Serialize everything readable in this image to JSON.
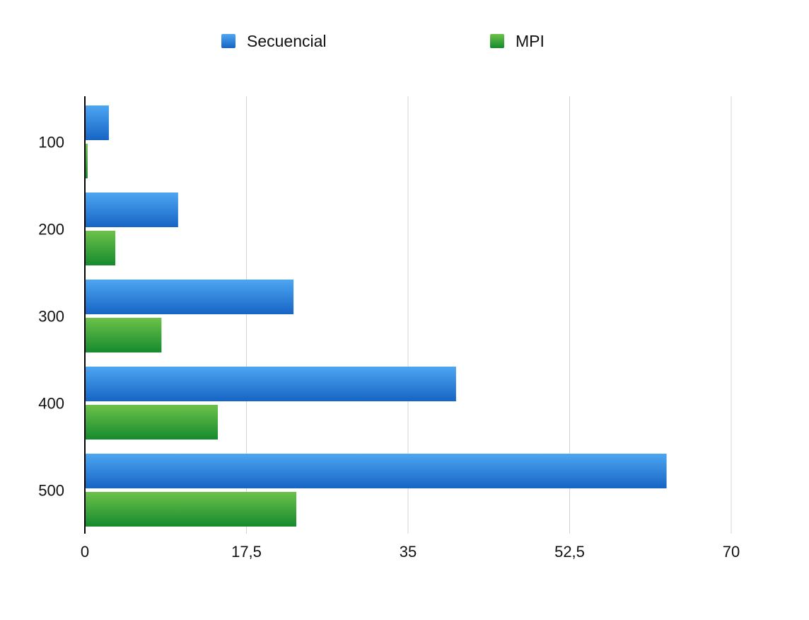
{
  "chart_data": {
    "type": "bar",
    "orientation": "horizontal",
    "title": "",
    "xlabel": "",
    "ylabel": "",
    "categories": [
      "100",
      "200",
      "300",
      "400",
      "500"
    ],
    "series": [
      {
        "name": "Secuencial",
        "values": [
          2.6,
          10.1,
          22.6,
          40.2,
          63.0
        ],
        "color_top": "#4da6f2",
        "color_bottom": "#1664c4"
      },
      {
        "name": "MPI",
        "values": [
          0.3,
          3.3,
          8.3,
          14.4,
          22.9
        ],
        "color_top": "#6cc24a",
        "color_bottom": "#168a2e"
      }
    ],
    "xlim": [
      0,
      70
    ],
    "xticks": [
      0,
      17.5,
      35,
      52.5,
      70
    ],
    "xtick_labels": [
      "0",
      "17,5",
      "35",
      "52,5",
      "70"
    ],
    "grid": "vertical",
    "legend_position": "top"
  }
}
